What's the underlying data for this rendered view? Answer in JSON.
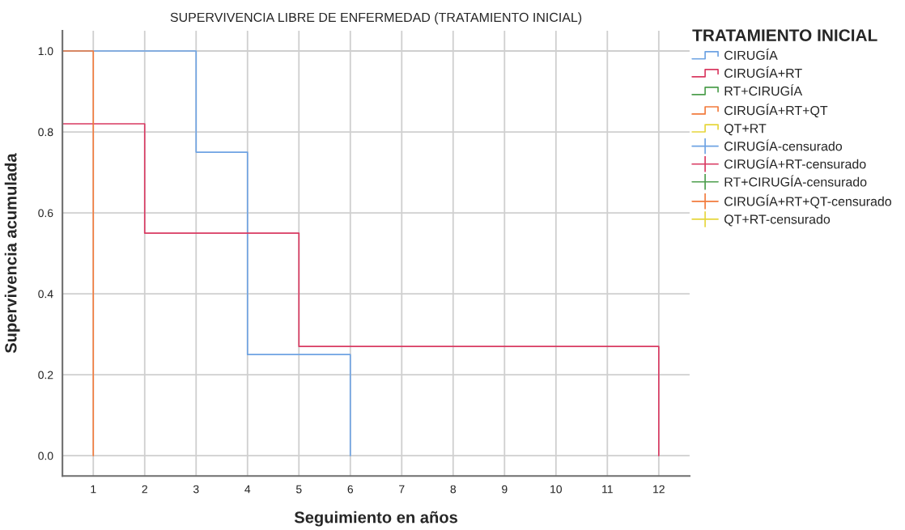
{
  "chart_data": {
    "type": "step",
    "title": "SUPERVIVENCIA LIBRE DE ENFERMEDAD (TRATAMIENTO INICIAL)",
    "xlabel": "Seguimiento en años",
    "ylabel": "Supervivencia acumulada",
    "legend_title": "TRATAMIENTO INICIAL",
    "xlim": [
      0.4,
      12.6
    ],
    "xticks": [
      1,
      2,
      3,
      4,
      5,
      6,
      7,
      8,
      9,
      10,
      11,
      12
    ],
    "ylim": [
      -0.05,
      1.05
    ],
    "yticks": [
      {
        "value": 0,
        "label": "0.0"
      },
      0.2,
      0.4,
      0.6,
      0.8,
      {
        "value": 1,
        "label": "1.0"
      }
    ],
    "grid": true,
    "legend": "right",
    "series": [
      {
        "name": "CIRUGÍA",
        "color": "#6ea3e3",
        "x": [
          0.4,
          3,
          4,
          6
        ],
        "values": [
          1.0,
          0.75,
          0.25,
          0
        ]
      },
      {
        "name": "CIRUGÍA+RT",
        "color": "#d93a62",
        "x": [
          0.4,
          2,
          5,
          12
        ],
        "values": [
          0.82,
          0.55,
          0.27,
          0
        ]
      },
      {
        "name": "RT+CIRUGÍA",
        "color": "#4d9e4d"
      },
      {
        "name": "CIRUGÍA+RT+QT",
        "color": "#f27b3d",
        "x": [
          0.4,
          1
        ],
        "values": [
          1.0,
          0
        ]
      },
      {
        "name": "QT+RT",
        "color": "#e6d63c"
      },
      {
        "name": "CIRUGÍA-censurado",
        "type": "scatter",
        "marker": "cross",
        "color": "#6ea3e3"
      },
      {
        "name": "CIRUGÍA+RT-censurado",
        "type": "scatter",
        "marker": "cross",
        "color": "#d93a62"
      },
      {
        "name": "RT+CIRUGÍA-censurado",
        "type": "scatter",
        "marker": "cross",
        "color": "#4d9e4d"
      },
      {
        "name": "CIRUGÍA+RT+QT-censurado",
        "type": "scatter",
        "marker": "cross",
        "color": "#f27b3d"
      },
      {
        "name": "QT+RT-censurado",
        "type": "scatter",
        "marker": "cross",
        "color": "#e6d63c"
      }
    ]
  }
}
